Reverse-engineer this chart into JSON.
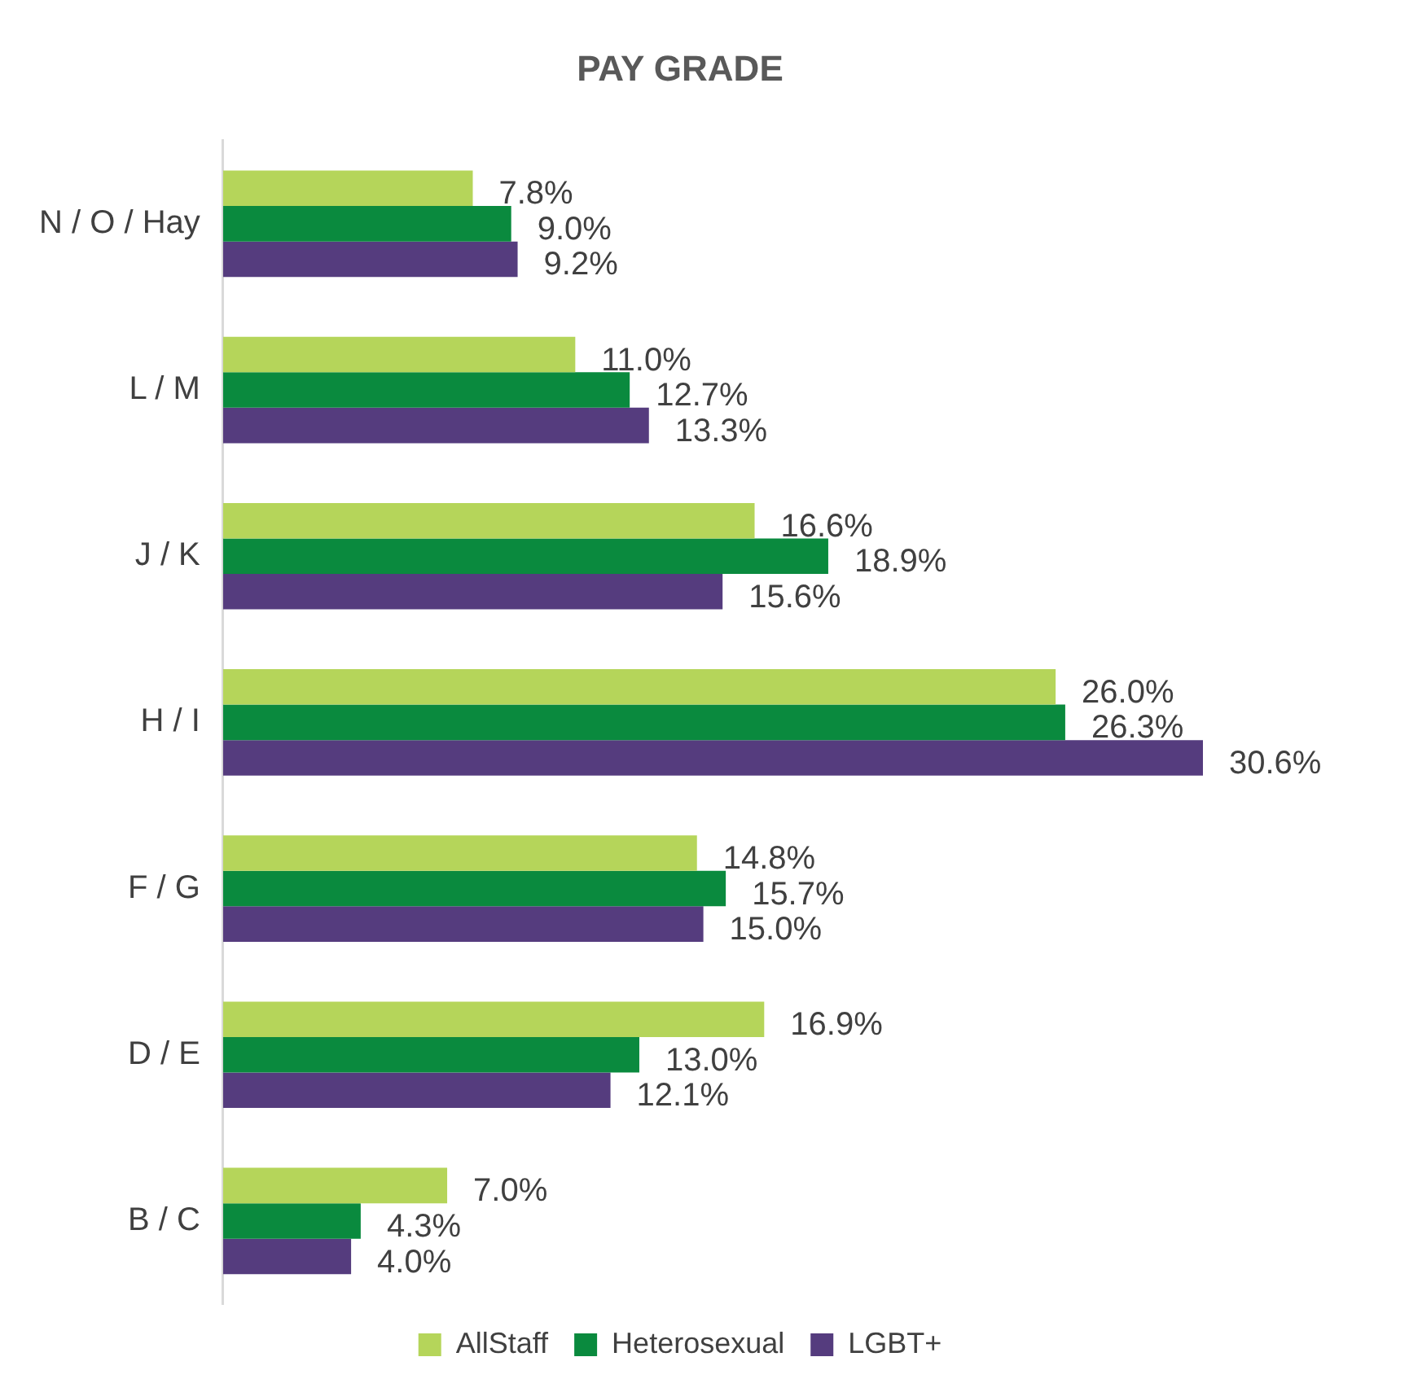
{
  "chart_data": {
    "type": "bar",
    "orientation": "horizontal",
    "title": "PAY GRADE",
    "tick_labels": "y",
    "legend": "bottom",
    "categories": [
      "N / O / Hay",
      "L / M",
      "J / K",
      "H / I",
      "F / G",
      "D / E",
      "B / C"
    ],
    "series": [
      {
        "name": "AllStaff",
        "color": "#b5d55a",
        "values": [
          7.8,
          11.0,
          16.6,
          26.0,
          14.8,
          16.9,
          7.0
        ],
        "value_labels": [
          "7.8%",
          "11.0%",
          "16.6%",
          "26.0%",
          "14.8%",
          "16.9%",
          "7.0%"
        ]
      },
      {
        "name": "Heterosexual",
        "color": "#0a8a3e",
        "values": [
          9.0,
          12.7,
          18.9,
          26.3,
          15.7,
          13.0,
          4.3
        ],
        "value_labels": [
          "9.0%",
          "12.7%",
          "18.9%",
          "26.3%",
          "15.7%",
          "13.0%",
          "4.3%"
        ]
      },
      {
        "name": "LGBT+",
        "color": "#553c7e",
        "values": [
          9.2,
          13.3,
          15.6,
          30.6,
          15.0,
          12.1,
          4.0
        ],
        "value_labels": [
          "9.2%",
          "13.3%",
          "15.6%",
          "30.6%",
          "15.0%",
          "12.1%",
          "4.0%"
        ]
      }
    ]
  }
}
